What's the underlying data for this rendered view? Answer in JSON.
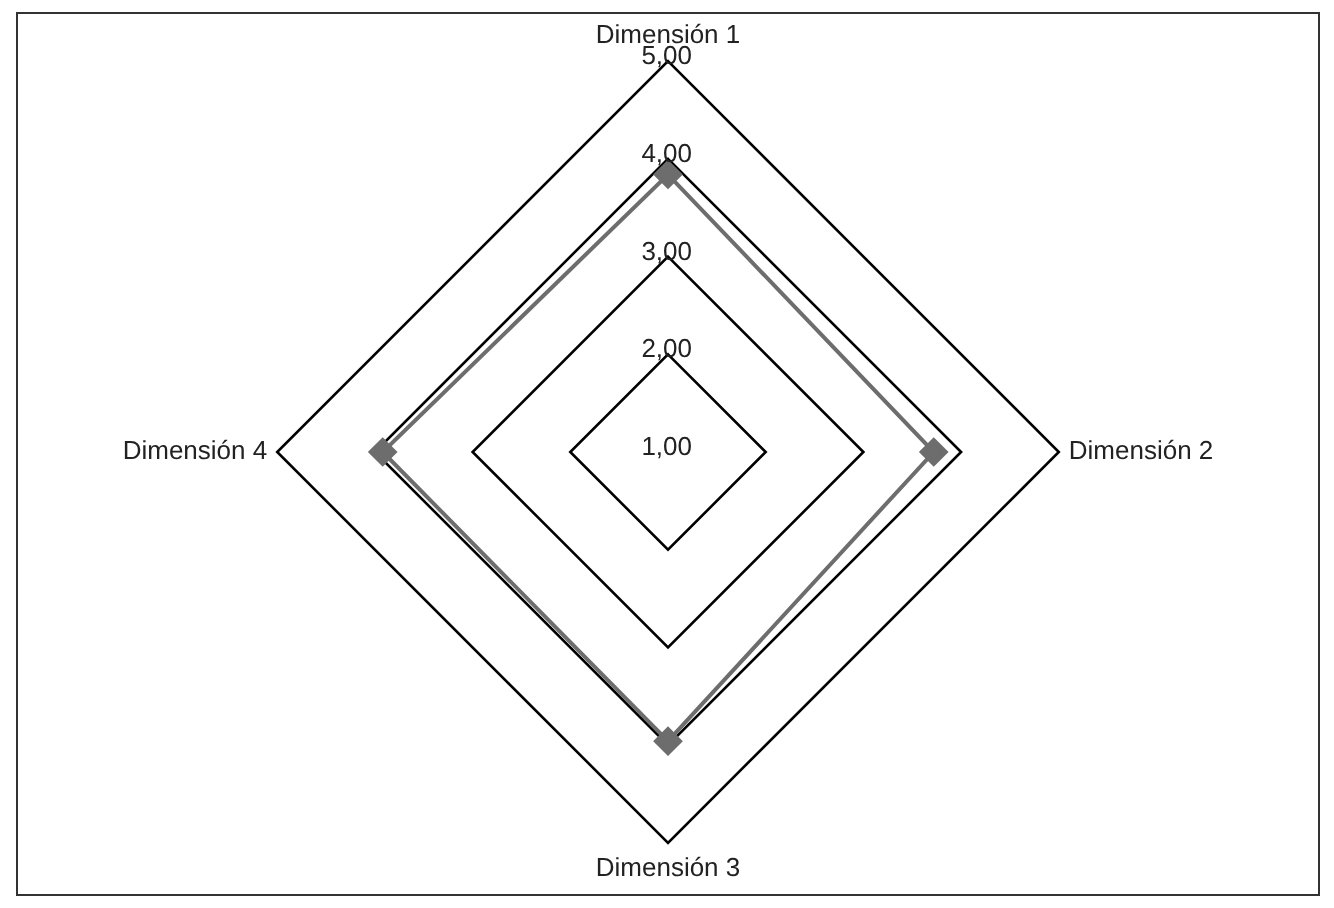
{
  "chart_data": {
    "type": "radar",
    "categories": [
      "Dimensión 1",
      "Dimensión 2",
      "Dimensión 3",
      "Dimensión 4"
    ],
    "series": [
      {
        "color": "#6d6d6d",
        "values": [
          3.84,
          3.72,
          3.96,
          3.92
        ]
      }
    ],
    "ylim": [
      1,
      5
    ],
    "yticks": [
      {
        "value": 1,
        "label": "1,00"
      },
      {
        "value": 2,
        "label": "2,00"
      },
      {
        "value": 3,
        "label": "3,00"
      },
      {
        "value": 4,
        "label": "4,00"
      },
      {
        "value": 5,
        "label": "5,00"
      }
    ],
    "grid": true,
    "marker": "diamond",
    "legend": false
  }
}
